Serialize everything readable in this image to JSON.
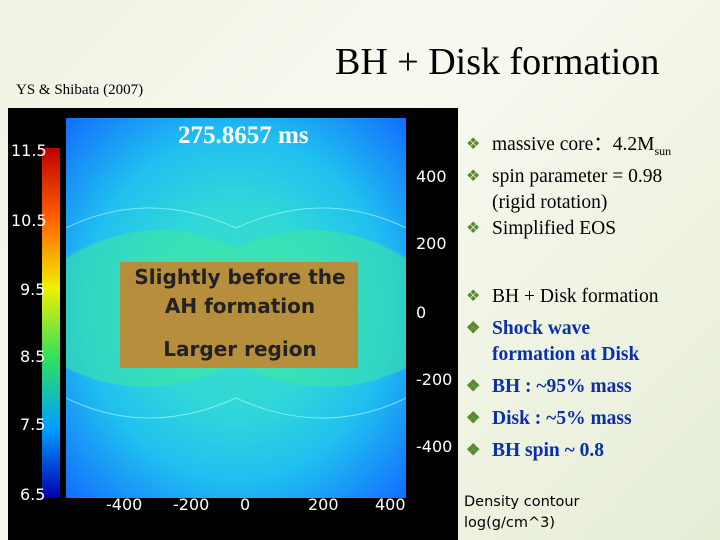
{
  "citation": "YS & Shibata (2007)",
  "title": "BH + Disk formation",
  "figure": {
    "time": "275.8657 ms",
    "colorbar_labels": [
      "11.5",
      "10.5",
      "9.5",
      "8.5",
      "7.5",
      "6.5"
    ],
    "y_labels": [
      "400",
      "200",
      "0",
      "-200",
      "-400"
    ],
    "x_labels": [
      "-400",
      "-200",
      "0",
      "200",
      "400"
    ],
    "overlay": [
      "Slightly before the",
      "AH formation",
      "Larger region"
    ],
    "caption": [
      "Density contour",
      "log(g/cm^3)"
    ]
  },
  "bullets_top": [
    {
      "text": "massive core：4.2M",
      "sub": "sun"
    },
    {
      "text": "spin parameter = 0.98",
      "cont": "(rigid rotation)"
    },
    {
      "text": "Simplified EOS"
    }
  ],
  "bullets_bottom": [
    {
      "text": "BH + Disk formation"
    },
    {
      "text": "Shock wave",
      "cont": "formation at Disk"
    },
    {
      "text": "BH   : ~95% mass"
    },
    {
      "text": "Disk :   ~5% mass"
    },
    {
      "text": "BH spin ~ 0.8"
    }
  ]
}
